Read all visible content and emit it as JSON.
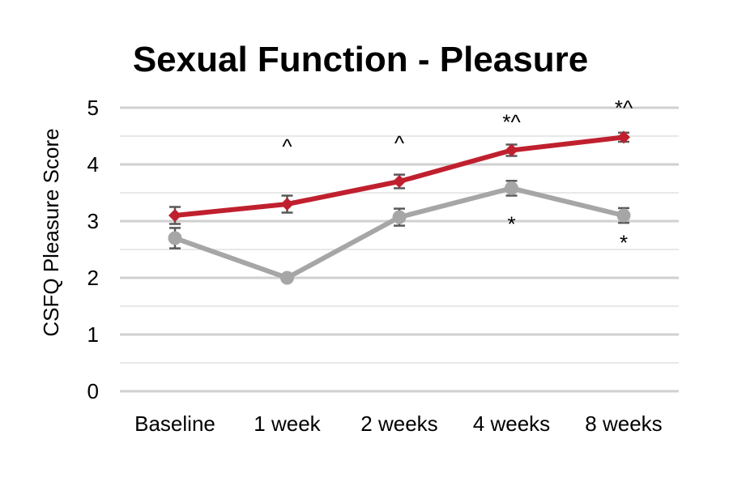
{
  "chart_data": {
    "type": "line",
    "title": "Sexual Function - Pleasure",
    "xlabel": "",
    "ylabel": "CSFQ Pleasure Score",
    "categories": [
      "Baseline",
      "1 week",
      "2 weeks",
      "4 weeks",
      "8 weeks"
    ],
    "ylim": [
      0,
      5
    ],
    "yticks": [
      "0",
      "1",
      "2",
      "3",
      "4",
      "5"
    ],
    "grid": true,
    "series": [
      {
        "color": "#c0202e",
        "marker": "diamond",
        "values": [
          3.1,
          3.3,
          3.7,
          4.25,
          4.48
        ],
        "error": [
          0.15,
          0.15,
          0.12,
          0.1,
          0.08
        ]
      },
      {
        "color": "#a6a6a6",
        "marker": "circle",
        "values": [
          2.7,
          2.0,
          3.07,
          3.58,
          3.1
        ],
        "error": [
          0.18,
          0.0,
          0.15,
          0.13,
          0.13
        ]
      }
    ],
    "annotations": [
      {
        "text": "^",
        "category": 1,
        "y": 4.32
      },
      {
        "text": "^",
        "category": 2,
        "y": 4.38
      },
      {
        "text": "*^",
        "category": 3,
        "y": 4.75
      },
      {
        "text": "*^",
        "category": 4,
        "y": 5.0
      },
      {
        "text": "*",
        "category": 3,
        "y": 2.95
      },
      {
        "text": "*",
        "category": 4,
        "y": 2.62
      }
    ]
  }
}
